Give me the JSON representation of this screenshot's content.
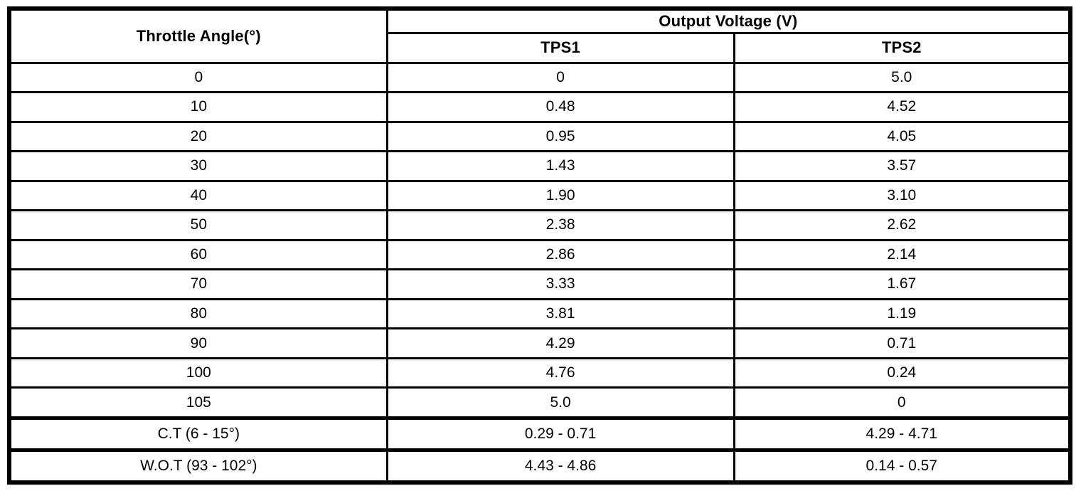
{
  "table": {
    "header": {
      "throttle_angle": "Throttle Angle(°)",
      "output_voltage": "Output Voltage (V)",
      "tps1": "TPS1",
      "tps2": "TPS2"
    },
    "rows": [
      {
        "angle": "0",
        "tps1": "0",
        "tps2": "5.0",
        "is_range": false
      },
      {
        "angle": "10",
        "tps1": "0.48",
        "tps2": "4.52",
        "is_range": false
      },
      {
        "angle": "20",
        "tps1": "0.95",
        "tps2": "4.05",
        "is_range": false
      },
      {
        "angle": "30",
        "tps1": "1.43",
        "tps2": "3.57",
        "is_range": false
      },
      {
        "angle": "40",
        "tps1": "1.90",
        "tps2": "3.10",
        "is_range": false
      },
      {
        "angle": "50",
        "tps1": "2.38",
        "tps2": "2.62",
        "is_range": false
      },
      {
        "angle": "60",
        "tps1": "2.86",
        "tps2": "2.14",
        "is_range": false
      },
      {
        "angle": "70",
        "tps1": "3.33",
        "tps2": "1.67",
        "is_range": false
      },
      {
        "angle": "80",
        "tps1": "3.81",
        "tps2": "1.19",
        "is_range": false
      },
      {
        "angle": "90",
        "tps1": "4.29",
        "tps2": "0.71",
        "is_range": false
      },
      {
        "angle": "100",
        "tps1": "4.76",
        "tps2": "0.24",
        "is_range": false
      },
      {
        "angle": "105",
        "tps1": "5.0",
        "tps2": "0",
        "is_range": false
      },
      {
        "angle": "C.T (6 - 15°)",
        "tps1": "0.29 - 0.71",
        "tps2": "4.29 - 4.71",
        "is_range": true
      },
      {
        "angle": "W.O.T (93 - 102°)",
        "tps1": "4.43 - 4.86",
        "tps2": "0.14 - 0.57",
        "is_range": true
      }
    ],
    "colors": {
      "border": "#000000",
      "background": "#ffffff",
      "text": "#000000"
    }
  }
}
